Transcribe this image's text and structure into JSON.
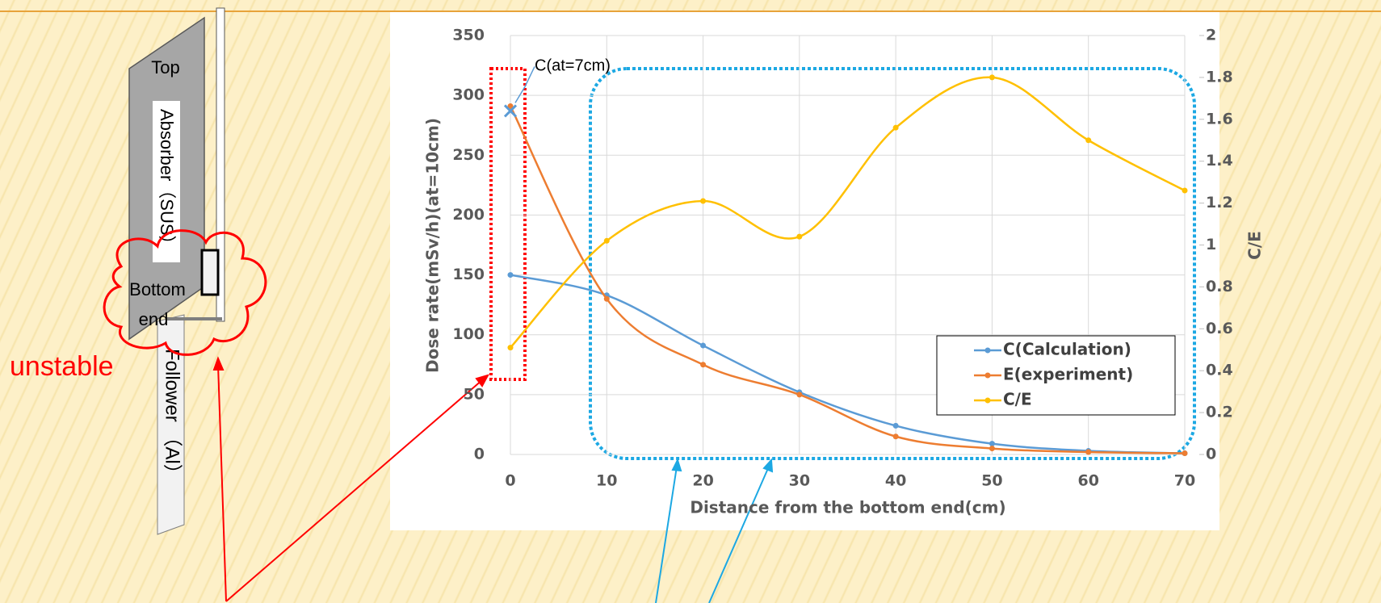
{
  "chart_data": {
    "type": "line",
    "x": [
      0,
      10,
      20,
      30,
      40,
      50,
      60,
      70
    ],
    "xlim": [
      0,
      70
    ],
    "xticks": [
      0,
      10,
      20,
      30,
      40,
      50,
      60,
      70
    ],
    "ylim": [
      0,
      350
    ],
    "yticks": [
      0,
      50,
      100,
      150,
      200,
      250,
      300,
      350
    ],
    "y2lim": [
      0,
      2
    ],
    "y2ticks": [
      0,
      0.2,
      0.4,
      0.6,
      0.8,
      1,
      1.2,
      1.4,
      1.6,
      1.8,
      2
    ],
    "xlabel": "Distance from the bottom end(cm)",
    "ylabel": "Dose rate(mSv/h)(at=10cm)",
    "y2label": "C/E",
    "grid": true,
    "legend": "lower right",
    "series": [
      {
        "name": "C(Calculation)",
        "color": "#5b9bd5",
        "values": [
          150,
          133,
          91,
          52,
          24,
          9,
          3,
          1
        ]
      },
      {
        "name": "E(experiment)",
        "color": "#ed7d31",
        "values": [
          291,
          130,
          75,
          50,
          15,
          5,
          2,
          1
        ]
      },
      {
        "name": "C/E",
        "color": "#ffc000",
        "axis": "y2",
        "values": [
          0.51,
          1.02,
          1.21,
          1.04,
          1.56,
          1.8,
          1.5,
          1.26
        ]
      }
    ],
    "annotations": [
      {
        "text": "C(at=7cm)",
        "x": 0,
        "y": 287,
        "color": "#5b9bd5"
      }
    ]
  },
  "diagram": {
    "top": "Top",
    "absorber": "Absorber（SUS）",
    "bottom_end": [
      "Bottom",
      "end"
    ],
    "follower": "Follower （Al）",
    "unstable": "unstable"
  }
}
